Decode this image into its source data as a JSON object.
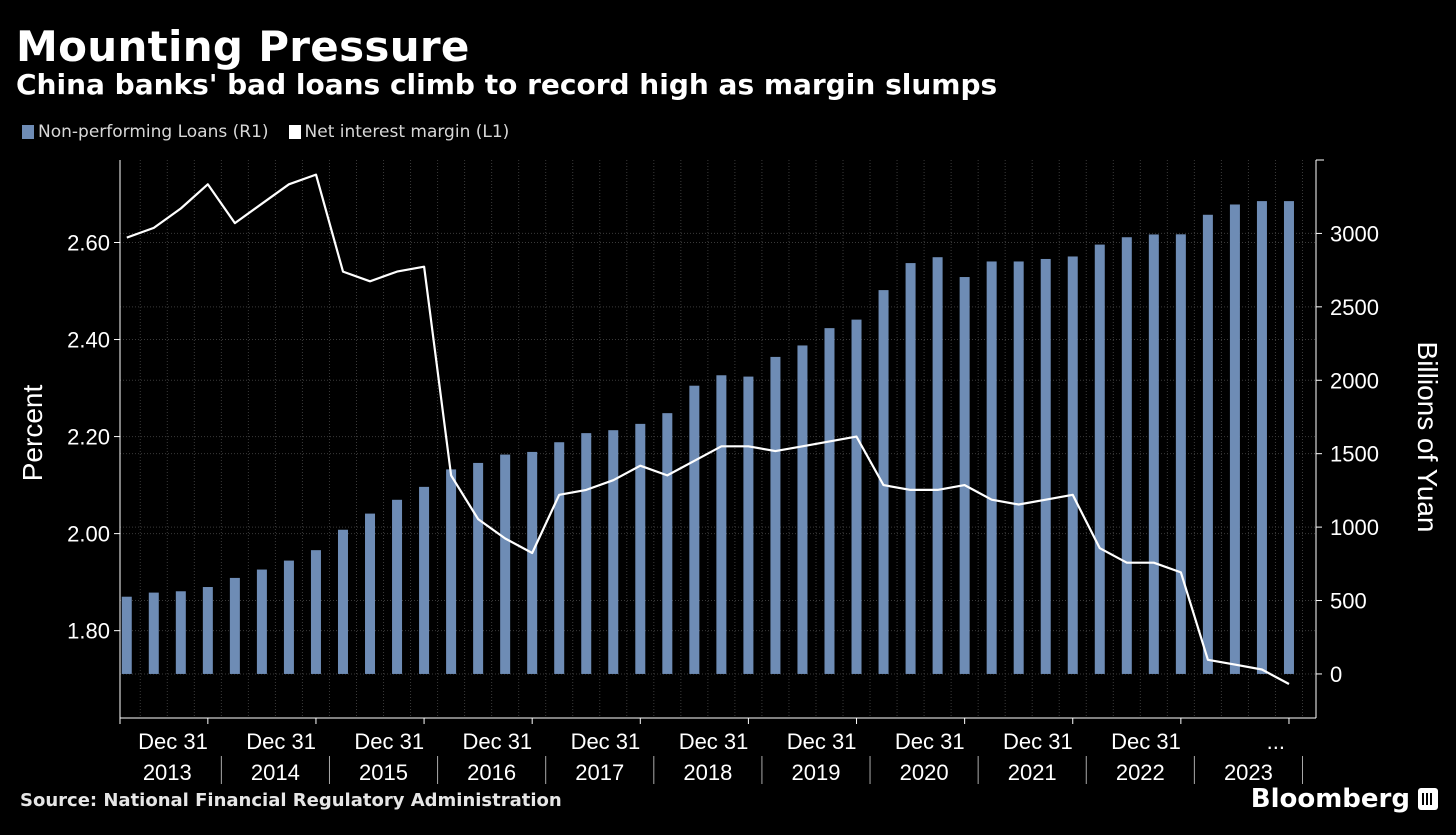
{
  "header": {
    "title": "Mounting Pressure",
    "subtitle": "China banks' bad loans climb to record high as margin slumps"
  },
  "legend": {
    "items": [
      {
        "label": "Non-performing Loans (R1)",
        "color": "#6e8cb5"
      },
      {
        "label": "Net interest margin (L1)",
        "color": "#ffffff"
      }
    ]
  },
  "footer": {
    "source": "Source: National Financial Regulatory Administration",
    "brand": "Bloomberg"
  },
  "chart_data": {
    "type": "bar",
    "categories": [
      "Q1 2013",
      "Q2 2013",
      "Q3 2013",
      "Q4 2013",
      "Q1 2014",
      "Q2 2014",
      "Q3 2014",
      "Q4 2014",
      "Q1 2015",
      "Q2 2015",
      "Q3 2015",
      "Q4 2015",
      "Q1 2016",
      "Q2 2016",
      "Q3 2016",
      "Q4 2016",
      "Q1 2017",
      "Q2 2017",
      "Q3 2017",
      "Q4 2017",
      "Q1 2018",
      "Q2 2018",
      "Q3 2018",
      "Q4 2018",
      "Q1 2019",
      "Q2 2019",
      "Q3 2019",
      "Q4 2019",
      "Q1 2020",
      "Q2 2020",
      "Q3 2020",
      "Q4 2020",
      "Q1 2021",
      "Q2 2021",
      "Q3 2021",
      "Q4 2021",
      "Q1 2022",
      "Q2 2022",
      "Q3 2022",
      "Q4 2022",
      "Q1 2023",
      "Q2 2023",
      "Q3 2023",
      "Q4 2023"
    ],
    "series": [
      {
        "name": "Non-performing Loans (R1)",
        "type": "bar",
        "axis": "right",
        "color": "#6e8cb5",
        "values": [
          526,
          554,
          563,
          592,
          654,
          711,
          772,
          843,
          982,
          1092,
          1186,
          1274,
          1393,
          1437,
          1494,
          1512,
          1578,
          1640,
          1660,
          1703,
          1776,
          1963,
          2034,
          2025,
          2159,
          2237,
          2355,
          2413,
          2614,
          2798,
          2838,
          2703,
          2809,
          2809,
          2826,
          2843,
          2924,
          2974,
          2993,
          2994,
          3127,
          3197,
          3220,
          3220
        ]
      },
      {
        "name": "Net interest margin (L1)",
        "type": "line",
        "axis": "left",
        "color": "#ffffff",
        "values": [
          2.61,
          2.63,
          2.67,
          2.72,
          2.64,
          2.68,
          2.72,
          2.74,
          2.54,
          2.52,
          2.54,
          2.55,
          2.12,
          2.03,
          1.99,
          1.96,
          2.08,
          2.09,
          2.11,
          2.14,
          2.12,
          2.15,
          2.18,
          2.18,
          2.17,
          2.18,
          2.19,
          2.2,
          2.1,
          2.09,
          2.09,
          2.1,
          2.07,
          2.06,
          2.07,
          2.08,
          1.97,
          1.94,
          1.94,
          1.92,
          1.74,
          1.73,
          1.72,
          1.69
        ]
      }
    ],
    "yleft": {
      "label": "Percent",
      "lim": [
        1.62,
        2.77
      ],
      "ticks": [
        "1.80",
        "2.00",
        "2.20",
        "2.40",
        "2.60"
      ]
    },
    "yright": {
      "label": "Billions of Yuan",
      "lim": [
        -300,
        3500
      ],
      "ticks": [
        "0",
        "500",
        "1000",
        "1500",
        "2000",
        "2500",
        "3000"
      ]
    },
    "x_tick_labels": [
      "Dec 31",
      "Dec 31",
      "Dec 31",
      "Dec 31",
      "Dec 31",
      "Dec 31",
      "Dec 31",
      "Dec 31",
      "Dec 31",
      "Dec 31",
      "...",
      "Dec 31"
    ],
    "year_labels": [
      "2013",
      "2014",
      "2015",
      "2016",
      "2017",
      "2018",
      "2019",
      "2020",
      "2021",
      "2022",
      "2023"
    ],
    "grid": true,
    "legend_position": "top-left"
  }
}
